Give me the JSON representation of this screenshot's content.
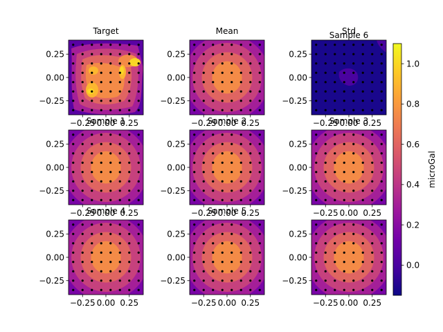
{
  "figure": {
    "colorbar_label": "microGal",
    "colorbar_ticks": [
      0.0,
      0.2,
      0.4,
      0.6,
      0.8,
      1.0
    ],
    "colorbar_range": [
      -0.15,
      1.1
    ],
    "colormap": "plasma",
    "colormap_stops": [
      "#0d0887",
      "#46039f",
      "#7201a8",
      "#9c179e",
      "#bd3786",
      "#d8576b",
      "#ed7953",
      "#fb9f3a",
      "#fdca26",
      "#f0f921"
    ]
  },
  "chart_data": [
    {
      "type": "heatmap",
      "title": "Target",
      "pattern": "noisy",
      "x_ticks": [
        "−0.25",
        "0.00",
        "0.25"
      ],
      "y_ticks": [
        "0.25",
        "0.00",
        "−0.25"
      ],
      "xlim": [
        -0.4,
        0.4
      ],
      "ylim": [
        -0.4,
        0.4
      ],
      "stations": "grid 8x8, spacing 0.1",
      "peak_value": 1.05,
      "level_values": [
        0.05,
        0.3,
        0.45,
        0.6,
        0.75,
        0.9,
        1.0
      ]
    },
    {
      "type": "heatmap",
      "title": "Mean",
      "pattern": "gaussian",
      "x_ticks": [
        "−0.25",
        "0.00",
        "0.25"
      ],
      "y_ticks": [
        "0.25",
        "0.00",
        "−0.25"
      ],
      "xlim": [
        -0.4,
        0.4
      ],
      "ylim": [
        -0.4,
        0.4
      ],
      "stations": "grid 8x8, spacing 0.1",
      "peak_value": 0.75,
      "level_values": [
        0.15,
        0.3,
        0.45,
        0.6,
        0.75
      ]
    },
    {
      "type": "heatmap",
      "title": "Std",
      "overlay_title": "Sample 6",
      "pattern": "std",
      "x_ticks": [
        "−0.25",
        "0.00",
        "0.25"
      ],
      "y_ticks": [
        "0.25",
        "0.00",
        "−0.25"
      ],
      "xlim": [
        -0.4,
        0.4
      ],
      "ylim": [
        -0.4,
        0.4
      ],
      "stations": "grid 8x8, spacing 0.1",
      "level_values": [
        -0.12,
        0.0
      ]
    },
    {
      "type": "heatmap",
      "title": "Sample 1",
      "pattern": "gaussian",
      "x_ticks": [
        "−0.25",
        "0.00",
        "0.25"
      ],
      "y_ticks": [
        "0.25",
        "0.00",
        "−0.25"
      ],
      "xlim": [
        -0.4,
        0.4
      ],
      "ylim": [
        -0.4,
        0.4
      ],
      "stations": "grid 8x8, spacing 0.1",
      "peak_value": 0.75,
      "level_values": [
        0.15,
        0.3,
        0.45,
        0.6,
        0.75
      ]
    },
    {
      "type": "heatmap",
      "title": "Sample 2",
      "pattern": "gaussian",
      "x_ticks": [
        "−0.25",
        "0.00",
        "0.25"
      ],
      "y_ticks": [
        "0.25",
        "0.00",
        "−0.25"
      ],
      "xlim": [
        -0.4,
        0.4
      ],
      "ylim": [
        -0.4,
        0.4
      ],
      "stations": "grid 8x8, spacing 0.1",
      "peak_value": 0.75,
      "level_values": [
        0.15,
        0.3,
        0.45,
        0.6,
        0.75
      ]
    },
    {
      "type": "heatmap",
      "title": "Sample 3",
      "pattern": "gaussian",
      "x_ticks": [
        "−0.25",
        "0.00",
        "0.25"
      ],
      "y_ticks": [
        "0.25",
        "0.00",
        "−0.25"
      ],
      "xlim": [
        -0.4,
        0.4
      ],
      "ylim": [
        -0.4,
        0.4
      ],
      "stations": "grid 8x8, spacing 0.1",
      "peak_value": 0.75,
      "level_values": [
        0.15,
        0.3,
        0.45,
        0.6,
        0.75
      ]
    },
    {
      "type": "heatmap",
      "title": "Sample 4",
      "pattern": "gaussian",
      "x_ticks": [
        "−0.25",
        "0.00",
        "0.25"
      ],
      "y_ticks": [
        "0.25",
        "0.00",
        "−0.25"
      ],
      "xlim": [
        -0.4,
        0.4
      ],
      "ylim": [
        -0.4,
        0.4
      ],
      "stations": "grid 8x8, spacing 0.1",
      "peak_value": 0.75,
      "level_values": [
        0.15,
        0.3,
        0.45,
        0.6,
        0.75
      ]
    },
    {
      "type": "heatmap",
      "title": "Sample 5",
      "pattern": "gaussian",
      "x_ticks": [
        "−0.25",
        "0.00",
        "0.25"
      ],
      "y_ticks": [
        "0.25",
        "0.00",
        "−0.25"
      ],
      "xlim": [
        -0.4,
        0.4
      ],
      "ylim": [
        -0.4,
        0.4
      ],
      "stations": "grid 8x8, spacing 0.1",
      "peak_value": 0.75,
      "level_values": [
        0.15,
        0.3,
        0.45,
        0.6,
        0.75
      ]
    },
    {
      "type": "heatmap",
      "title": "",
      "pattern": "gaussian",
      "x_ticks": [
        "−0.25",
        "0.00",
        "0.25"
      ],
      "y_ticks": [
        "0.25",
        "0.00",
        "−0.25"
      ],
      "xlim": [
        -0.4,
        0.4
      ],
      "ylim": [
        -0.4,
        0.4
      ],
      "stations": "grid 8x8, spacing 0.1",
      "peak_value": 0.75,
      "level_values": [
        0.15,
        0.3,
        0.45,
        0.6,
        0.75
      ]
    }
  ]
}
